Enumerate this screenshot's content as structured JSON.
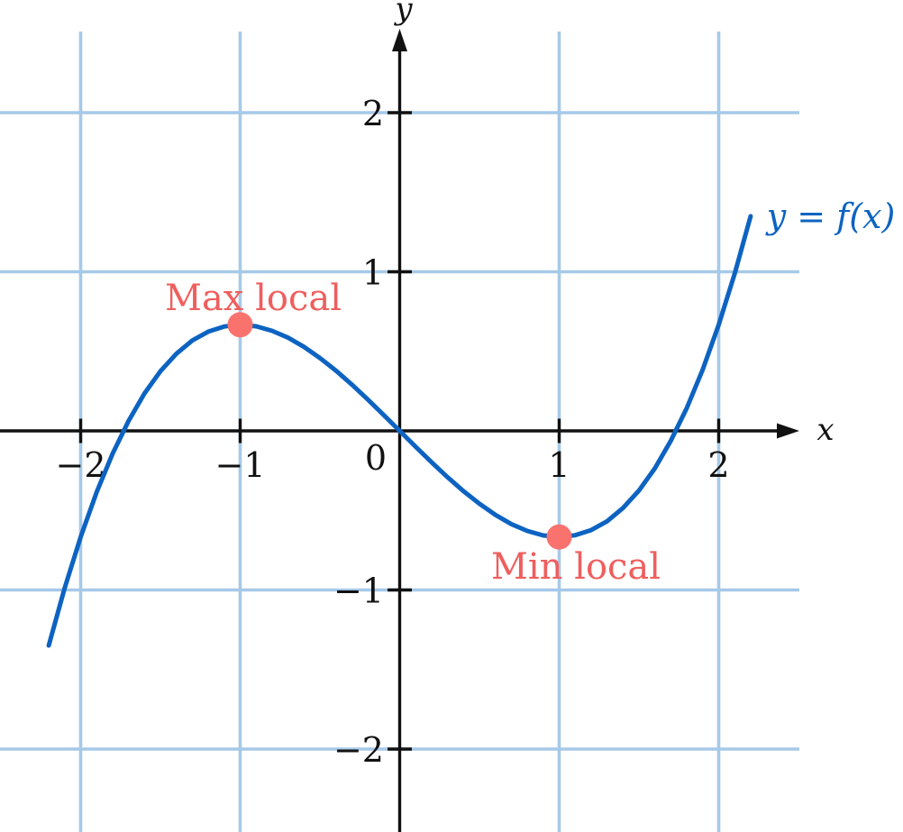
{
  "chart_data": {
    "type": "line",
    "title": "",
    "curve_label": "y = f(x)",
    "x_axis_label": "x",
    "y_axis_label": "y",
    "origin_label": "0",
    "grid": true,
    "legend_position": "inline-right",
    "xlim": [
      -2.5,
      3.15
    ],
    "ylim": [
      -2.52,
      2.71
    ],
    "x_ticks": [
      {
        "value": -2,
        "label": "−2"
      },
      {
        "value": -1,
        "label": "−1"
      },
      {
        "value": 1,
        "label": "1"
      },
      {
        "value": 2,
        "label": "2"
      }
    ],
    "y_ticks": [
      {
        "value": 2,
        "label": "2"
      },
      {
        "value": 1,
        "label": "1"
      },
      {
        "value": -1,
        "label": "−1"
      },
      {
        "value": -2,
        "label": "−2"
      }
    ],
    "series": [
      {
        "name": "f(x)",
        "x": [
          -2.2,
          -2.1,
          -2,
          -1.9,
          -1.8,
          -1.7,
          -1.6,
          -1.5,
          -1.4,
          -1.3,
          -1.2,
          -1.1,
          -1,
          -0.9,
          -0.8,
          -0.7,
          -0.6,
          -0.5,
          -0.4,
          -0.3,
          -0.2,
          -0.1,
          0,
          0.1,
          0.2,
          0.3,
          0.4,
          0.5,
          0.6,
          0.7,
          0.8,
          0.9,
          1,
          1.1,
          1.2,
          1.3,
          1.4,
          1.5,
          1.6,
          1.7,
          1.8,
          1.9,
          2,
          2.1,
          2.2
        ],
        "y": [
          -1.349,
          -0.987,
          -0.667,
          -0.386,
          -0.144,
          0.062,
          0.235,
          0.375,
          0.485,
          0.568,
          0.624,
          0.656,
          0.667,
          0.657,
          0.629,
          0.586,
          0.528,
          0.458,
          0.379,
          0.291,
          0.197,
          0.1,
          0,
          -0.1,
          -0.197,
          -0.291,
          -0.379,
          -0.458,
          -0.528,
          -0.586,
          -0.629,
          -0.657,
          -0.667,
          -0.656,
          -0.624,
          -0.568,
          -0.485,
          -0.375,
          -0.235,
          -0.062,
          0.144,
          0.386,
          0.667,
          0.987,
          1.349
        ]
      }
    ],
    "points": [
      {
        "x": -1,
        "y": 0.667,
        "label": "Max local",
        "label_position": "above"
      },
      {
        "x": 1,
        "y": -0.667,
        "label": "Min local",
        "label_position": "below"
      }
    ],
    "colors": {
      "background": "#ffffff",
      "grid": "#a6c9e8",
      "axis": "#111111",
      "tick_label": "#111111",
      "curve": "#0d63c1",
      "point": "#f9726e",
      "point_label": "#ee5f5e"
    }
  }
}
